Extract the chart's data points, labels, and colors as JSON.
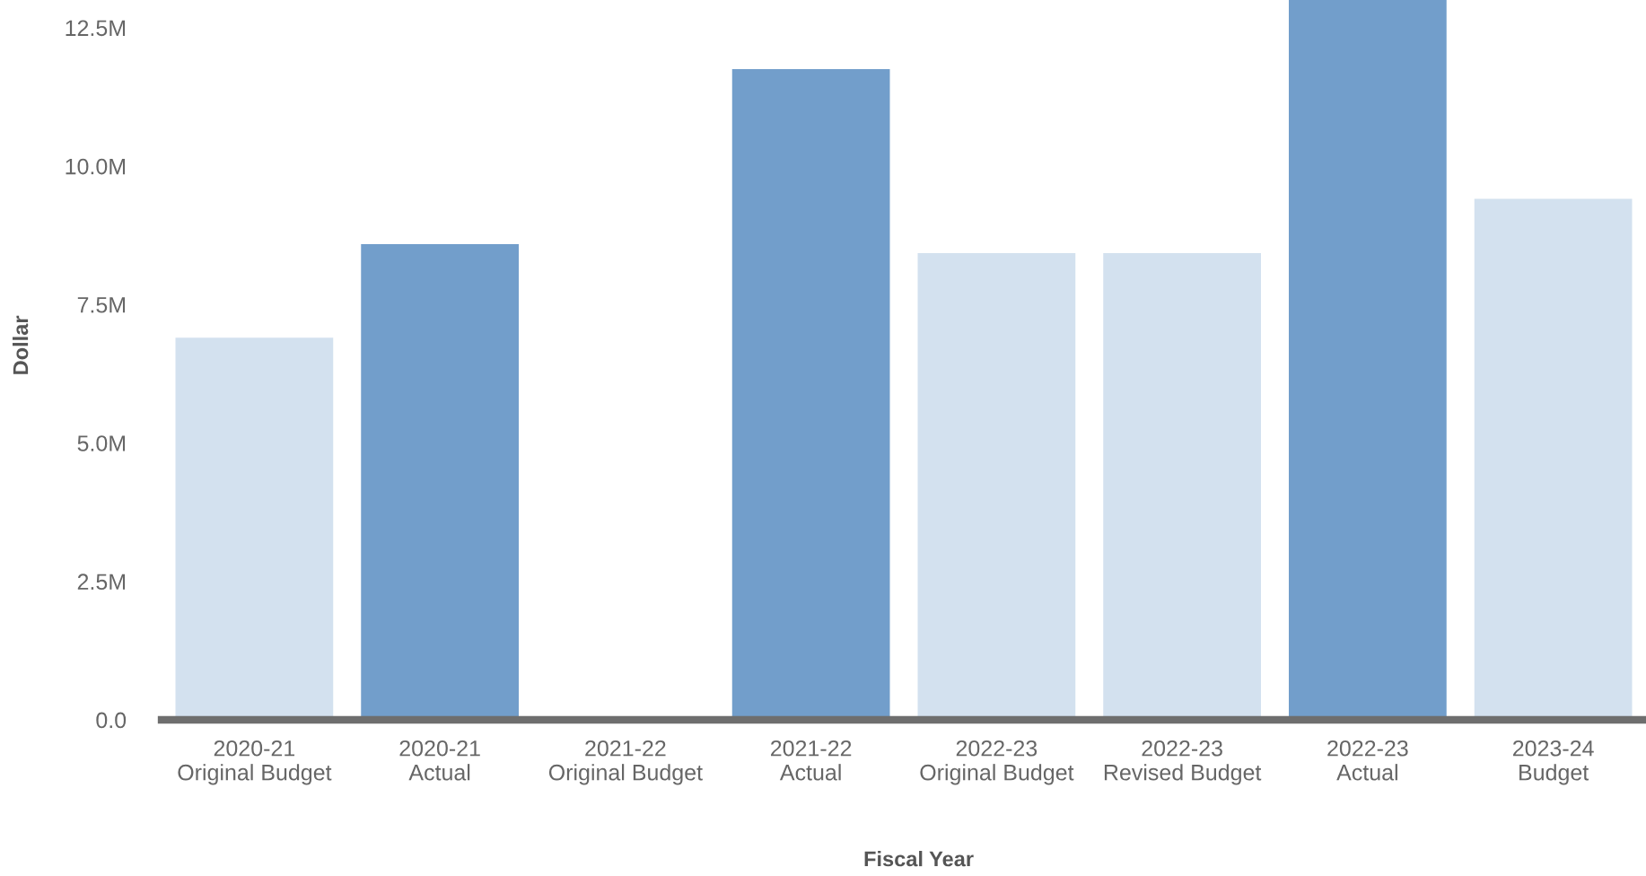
{
  "chart_data": {
    "type": "bar",
    "xlabel": "Fiscal Year",
    "ylabel": "Dollar",
    "categories": [
      "2020-21\nOriginal Budget",
      "2020-21\nActual",
      "2021-22\nOriginal Budget",
      "2021-22\nActual",
      "2022-23\nOriginal Budget",
      "2022-23\nRevised Budget",
      "2022-23\nActual",
      "2023-24\nBudget"
    ],
    "values": [
      6900000,
      8590000,
      null,
      11750000,
      8430000,
      8430000,
      13000000,
      9410000
    ],
    "colors": [
      "#d3e1ef",
      "#729ecb",
      "#d3e1ef",
      "#729ecb",
      "#d3e1ef",
      "#d3e1ef",
      "#729ecb",
      "#d3e1ef"
    ],
    "ylim": [
      0,
      13000000
    ],
    "yticks": [
      {
        "value": 0,
        "label": "0.0"
      },
      {
        "value": 2500000,
        "label": "2.5M"
      },
      {
        "value": 5000000,
        "label": "5.0M"
      },
      {
        "value": 7500000,
        "label": "7.5M"
      },
      {
        "value": 10000000,
        "label": "10.0M"
      },
      {
        "value": 12500000,
        "label": "12.5M"
      }
    ]
  }
}
